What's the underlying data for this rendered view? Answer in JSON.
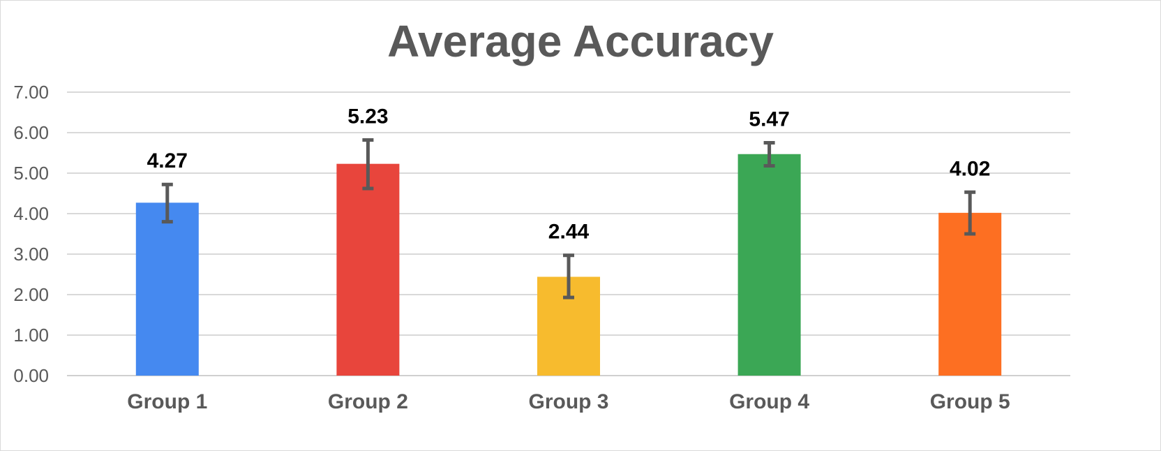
{
  "chart_data": {
    "type": "bar",
    "title": "Average Accuracy",
    "xlabel": "",
    "ylabel": "",
    "categories": [
      "Group 1",
      "Group 2",
      "Group 3",
      "Group 4",
      "Group 5"
    ],
    "values": [
      4.27,
      5.23,
      2.44,
      5.47,
      4.02
    ],
    "error_low": [
      3.8,
      4.62,
      1.93,
      5.18,
      3.5
    ],
    "error_high": [
      4.72,
      5.82,
      2.97,
      5.75,
      4.53
    ],
    "colors": [
      "#4589f0",
      "#e8453c",
      "#f7bb2e",
      "#3ba755",
      "#fd6f22"
    ],
    "data_labels": [
      "4.27",
      "5.23",
      "2.44",
      "5.47",
      "4.02"
    ],
    "ylim": [
      0,
      7
    ],
    "yticks": [
      "0.00",
      "1.00",
      "2.00",
      "3.00",
      "4.00",
      "5.00",
      "6.00",
      "7.00"
    ],
    "grid": true,
    "legend": "none"
  }
}
